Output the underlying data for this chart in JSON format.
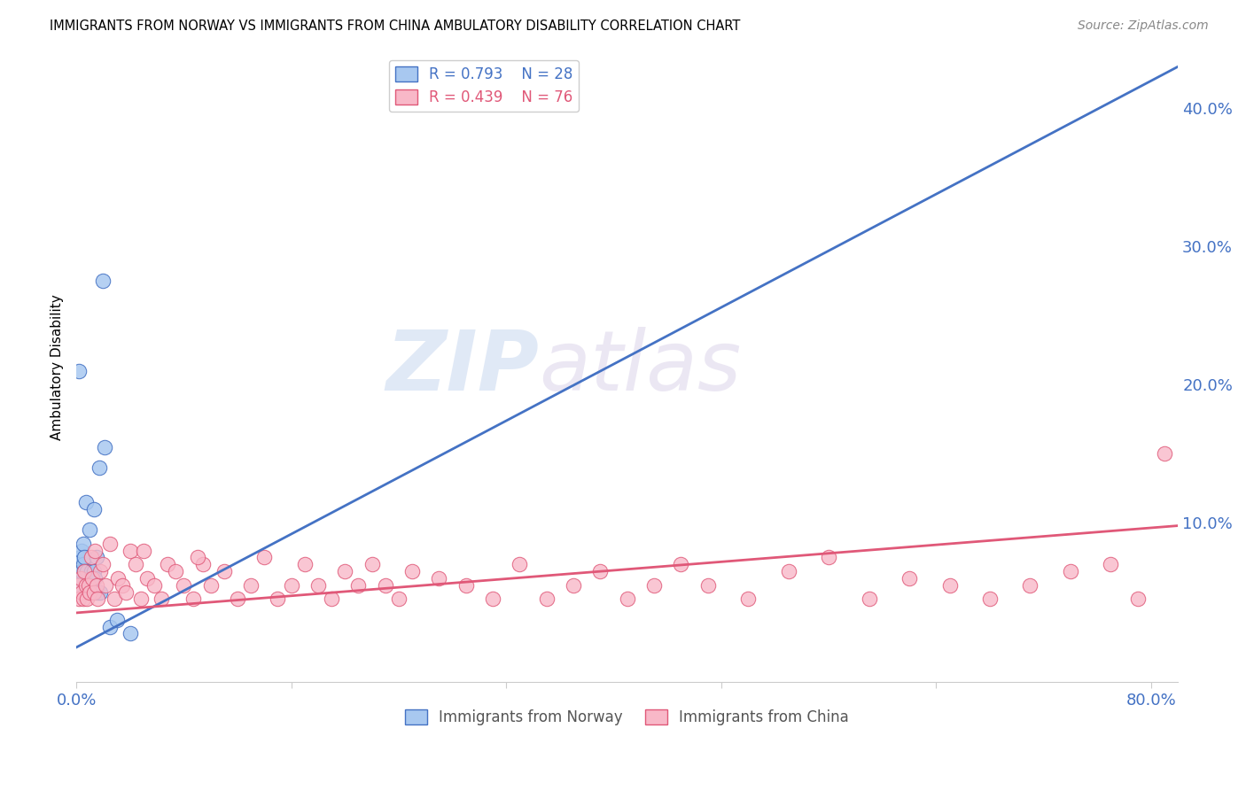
{
  "title": "IMMIGRANTS FROM NORWAY VS IMMIGRANTS FROM CHINA AMBULATORY DISABILITY CORRELATION CHART",
  "source": "Source: ZipAtlas.com",
  "ylabel": "Ambulatory Disability",
  "norway_R": 0.793,
  "norway_N": 28,
  "china_R": 0.439,
  "china_N": 76,
  "norway_color": "#A8C8F0",
  "china_color": "#F8B8C8",
  "norway_line_color": "#4472C4",
  "china_line_color": "#E05878",
  "watermark_text": "ZIP",
  "watermark_text2": "atlas",
  "xlim": [
    0.0,
    0.82
  ],
  "ylim": [
    -0.015,
    0.44
  ],
  "norway_scatter_x": [
    0.001,
    0.002,
    0.003,
    0.003,
    0.004,
    0.004,
    0.005,
    0.005,
    0.006,
    0.006,
    0.007,
    0.008,
    0.009,
    0.01,
    0.011,
    0.012,
    0.013,
    0.013,
    0.014,
    0.015,
    0.016,
    0.017,
    0.018,
    0.02,
    0.021,
    0.025,
    0.03,
    0.04
  ],
  "norway_scatter_y": [
    0.055,
    0.21,
    0.075,
    0.065,
    0.08,
    0.065,
    0.085,
    0.07,
    0.075,
    0.065,
    0.115,
    0.065,
    0.055,
    0.095,
    0.065,
    0.06,
    0.11,
    0.065,
    0.06,
    0.075,
    0.05,
    0.14,
    0.05,
    0.275,
    0.155,
    0.025,
    0.03,
    0.02
  ],
  "china_scatter_x": [
    0.001,
    0.002,
    0.003,
    0.004,
    0.005,
    0.006,
    0.007,
    0.008,
    0.009,
    0.01,
    0.011,
    0.012,
    0.013,
    0.014,
    0.015,
    0.016,
    0.018,
    0.02,
    0.022,
    0.025,
    0.028,
    0.031,
    0.034,
    0.037,
    0.04,
    0.044,
    0.048,
    0.053,
    0.058,
    0.063,
    0.068,
    0.074,
    0.08,
    0.087,
    0.094,
    0.1,
    0.11,
    0.12,
    0.13,
    0.14,
    0.15,
    0.16,
    0.17,
    0.18,
    0.19,
    0.2,
    0.21,
    0.22,
    0.23,
    0.24,
    0.25,
    0.27,
    0.29,
    0.31,
    0.33,
    0.35,
    0.37,
    0.39,
    0.41,
    0.43,
    0.45,
    0.47,
    0.5,
    0.53,
    0.56,
    0.59,
    0.62,
    0.65,
    0.68,
    0.71,
    0.74,
    0.77,
    0.79,
    0.81,
    0.05,
    0.09
  ],
  "china_scatter_y": [
    0.055,
    0.045,
    0.06,
    0.05,
    0.045,
    0.065,
    0.055,
    0.045,
    0.055,
    0.05,
    0.075,
    0.06,
    0.05,
    0.08,
    0.055,
    0.045,
    0.065,
    0.07,
    0.055,
    0.085,
    0.045,
    0.06,
    0.055,
    0.05,
    0.08,
    0.07,
    0.045,
    0.06,
    0.055,
    0.045,
    0.07,
    0.065,
    0.055,
    0.045,
    0.07,
    0.055,
    0.065,
    0.045,
    0.055,
    0.075,
    0.045,
    0.055,
    0.07,
    0.055,
    0.045,
    0.065,
    0.055,
    0.07,
    0.055,
    0.045,
    0.065,
    0.06,
    0.055,
    0.045,
    0.07,
    0.045,
    0.055,
    0.065,
    0.045,
    0.055,
    0.07,
    0.055,
    0.045,
    0.065,
    0.075,
    0.045,
    0.06,
    0.055,
    0.045,
    0.055,
    0.065,
    0.07,
    0.045,
    0.15,
    0.08,
    0.075
  ],
  "norway_trend_x0": 0.0,
  "norway_trend_y0": 0.01,
  "norway_trend_x1": 0.82,
  "norway_trend_y1": 0.43,
  "china_trend_x0": 0.0,
  "china_trend_y0": 0.035,
  "china_trend_x1": 0.82,
  "china_trend_y1": 0.098,
  "right_yticks": [
    0.0,
    0.1,
    0.2,
    0.3,
    0.4
  ],
  "right_yticklabels": [
    "",
    "10.0%",
    "20.0%",
    "30.0%",
    "40.0%"
  ],
  "grid_color": "#CCCCCC",
  "tick_color": "#4472C4",
  "source_color": "#888888"
}
